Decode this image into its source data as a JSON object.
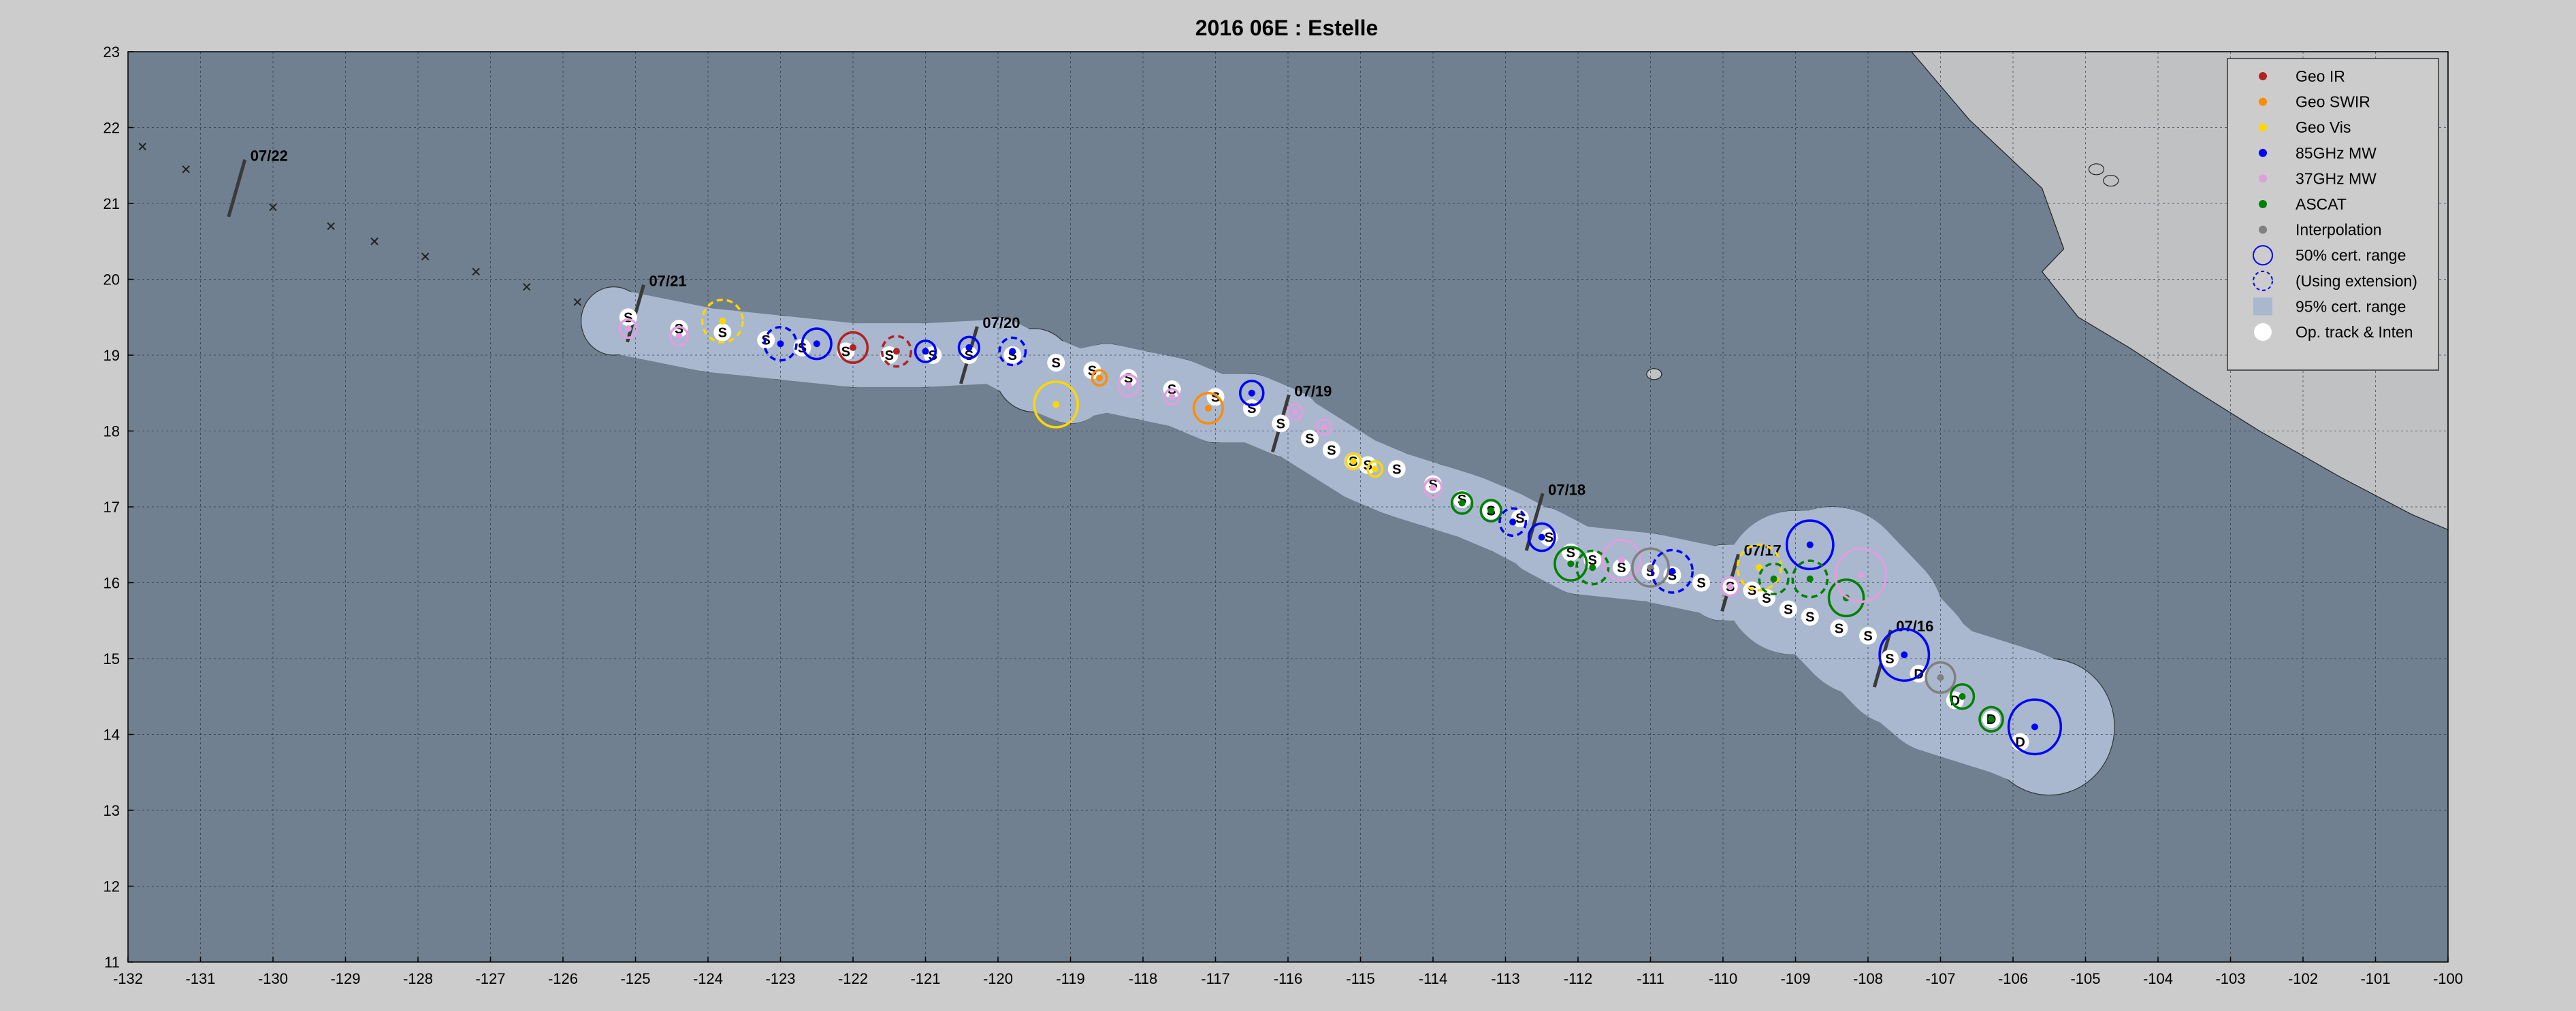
{
  "chart_data": {
    "type": "scatter",
    "title": "2016  06E :  Estelle",
    "xlim": [
      -132,
      -100
    ],
    "ylim": [
      11,
      23
    ],
    "x_ticks": [
      -132,
      -131,
      -130,
      -129,
      -128,
      -127,
      -126,
      -125,
      -124,
      -123,
      -122,
      -121,
      -120,
      -119,
      -118,
      -117,
      -116,
      -115,
      -114,
      -113,
      -112,
      -111,
      -110,
      -109,
      -108,
      -107,
      -106,
      -105,
      -104,
      -103,
      -102,
      -101,
      -100
    ],
    "y_ticks": [
      11,
      12,
      13,
      14,
      15,
      16,
      17,
      18,
      19,
      20,
      21,
      22,
      23
    ],
    "grid": true,
    "legend_position": "top-right",
    "colors": {
      "plot_bg": "#708090",
      "cone": "#a9b8cf",
      "land": "#bfc1c3",
      "geo_ir": "#b22222",
      "geo_swir": "#ff8c00",
      "geo_vis": "#ffd700",
      "ghz85": "#0000ff",
      "ghz37": "#dda0dd",
      "ascat": "#008000",
      "interp": "#808080"
    },
    "legend": [
      {
        "label": "Geo IR",
        "type": "dot",
        "color": "#b22222"
      },
      {
        "label": "Geo SWIR",
        "type": "dot",
        "color": "#ff8c00"
      },
      {
        "label": "Geo Vis",
        "type": "dot",
        "color": "#ffd700"
      },
      {
        "label": "85GHz MW",
        "type": "dot",
        "color": "#0000ff"
      },
      {
        "label": "37GHz MW",
        "type": "dot",
        "color": "#dda0dd"
      },
      {
        "label": "ASCAT",
        "type": "dot",
        "color": "#008000"
      },
      {
        "label": "Interpolation",
        "type": "dot",
        "color": "#808080"
      },
      {
        "label": "50% cert. range",
        "type": "circle",
        "color": "#0000ff"
      },
      {
        "label": "(Using extension)",
        "type": "dashcircle",
        "color": "#0000ff"
      },
      {
        "label": "95% cert. range",
        "type": "square",
        "color": "#a9b8cf"
      },
      {
        "label": "Op. track & Inten",
        "type": "whitedot",
        "color": "#ffffff"
      }
    ],
    "cone_center": [
      [
        -125.3,
        19.45
      ],
      [
        -124,
        19.2
      ],
      [
        -123,
        19.1
      ],
      [
        -122,
        19.0
      ],
      [
        -121,
        19.0
      ],
      [
        -120,
        19.05
      ],
      [
        -119.5,
        18.8
      ],
      [
        -119,
        18.6
      ],
      [
        -118.5,
        18.7
      ],
      [
        -118,
        18.6
      ],
      [
        -117.5,
        18.5
      ],
      [
        -117,
        18.3
      ],
      [
        -116.5,
        18.3
      ],
      [
        -116,
        18.1
      ],
      [
        -115.5,
        17.8
      ],
      [
        -115,
        17.5
      ],
      [
        -114.5,
        17.3
      ],
      [
        -114,
        17.15
      ],
      [
        -113.5,
        17.0
      ],
      [
        -113,
        16.8
      ],
      [
        -112.5,
        16.55
      ],
      [
        -112,
        16.3
      ],
      [
        -111,
        16.2
      ],
      [
        -110,
        16.0
      ],
      [
        -109,
        16.0
      ],
      [
        -108.5,
        16.0
      ],
      [
        -108,
        15.5
      ],
      [
        -107.5,
        15.0
      ],
      [
        -107,
        14.6
      ],
      [
        -106,
        14.3
      ],
      [
        -105.5,
        14.1
      ]
    ],
    "cone_halfwidth": [
      0.45,
      0.42,
      0.42,
      0.42,
      0.42,
      0.45,
      0.55,
      0.5,
      0.45,
      0.45,
      0.45,
      0.45,
      0.45,
      0.45,
      0.42,
      0.42,
      0.42,
      0.42,
      0.42,
      0.42,
      0.45,
      0.45,
      0.45,
      0.5,
      0.95,
      1.0,
      1.0,
      0.9,
      0.85,
      0.85,
      0.9
    ],
    "op_track": [
      {
        "x": -125.1,
        "y": 19.5,
        "label": "S"
      },
      {
        "x": -124.4,
        "y": 19.35,
        "label": "S"
      },
      {
        "x": -123.8,
        "y": 19.3,
        "label": "S"
      },
      {
        "x": -123.2,
        "y": 19.2,
        "label": "S"
      },
      {
        "x": -122.7,
        "y": 19.1,
        "label": "S"
      },
      {
        "x": -122.1,
        "y": 19.05,
        "label": "S"
      },
      {
        "x": -121.5,
        "y": 19.0,
        "label": "S"
      },
      {
        "x": -120.9,
        "y": 19.0,
        "label": "S"
      },
      {
        "x": -120.4,
        "y": 19.0,
        "label": "S"
      },
      {
        "x": -119.8,
        "y": 19.0,
        "label": "S"
      },
      {
        "x": -119.2,
        "y": 18.9,
        "label": "S"
      },
      {
        "x": -118.7,
        "y": 18.8,
        "label": "S"
      },
      {
        "x": -118.2,
        "y": 18.7,
        "label": "S"
      },
      {
        "x": -117.6,
        "y": 18.55,
        "label": "S"
      },
      {
        "x": -117.0,
        "y": 18.45,
        "label": "S"
      },
      {
        "x": -116.5,
        "y": 18.3,
        "label": "S"
      },
      {
        "x": -116.1,
        "y": 18.1,
        "label": "S"
      },
      {
        "x": -115.7,
        "y": 17.9,
        "label": "S"
      },
      {
        "x": -115.4,
        "y": 17.75,
        "label": "S"
      },
      {
        "x": -115.1,
        "y": 17.6,
        "label": "S"
      },
      {
        "x": -114.9,
        "y": 17.55,
        "label": "S"
      },
      {
        "x": -114.5,
        "y": 17.5,
        "label": "S"
      },
      {
        "x": -114.0,
        "y": 17.3,
        "label": "S"
      },
      {
        "x": -113.6,
        "y": 17.1,
        "label": "S"
      },
      {
        "x": -113.2,
        "y": 16.95,
        "label": "S"
      },
      {
        "x": -112.8,
        "y": 16.85,
        "label": "S"
      },
      {
        "x": -112.4,
        "y": 16.6,
        "label": "S"
      },
      {
        "x": -112.1,
        "y": 16.4,
        "label": "S"
      },
      {
        "x": -111.8,
        "y": 16.3,
        "label": "S"
      },
      {
        "x": -111.4,
        "y": 16.2,
        "label": "S"
      },
      {
        "x": -111.0,
        "y": 16.15,
        "label": "S"
      },
      {
        "x": -110.7,
        "y": 16.1,
        "label": "S"
      },
      {
        "x": -110.3,
        "y": 16.0,
        "label": "S"
      },
      {
        "x": -109.9,
        "y": 15.95,
        "label": "S"
      },
      {
        "x": -109.6,
        "y": 15.9,
        "label": "S"
      },
      {
        "x": -109.4,
        "y": 15.8,
        "label": "S"
      },
      {
        "x": -109.1,
        "y": 15.65,
        "label": "S"
      },
      {
        "x": -108.8,
        "y": 15.55,
        "label": "S"
      },
      {
        "x": -108.4,
        "y": 15.4,
        "label": "S"
      },
      {
        "x": -108.0,
        "y": 15.3,
        "label": "S"
      },
      {
        "x": -107.7,
        "y": 15.0,
        "label": "S"
      },
      {
        "x": -107.3,
        "y": 14.8,
        "label": "D"
      },
      {
        "x": -106.8,
        "y": 14.45,
        "label": "D"
      },
      {
        "x": -106.3,
        "y": 14.2,
        "label": "D"
      },
      {
        "x": -105.9,
        "y": 13.9,
        "label": "D"
      }
    ],
    "fixes": [
      {
        "type": "ghz37",
        "x": -125.1,
        "y": 19.35,
        "r": 0.12
      },
      {
        "type": "ghz37",
        "x": -124.4,
        "y": 19.25,
        "r": 0.12
      },
      {
        "type": "geo_vis",
        "x": -123.8,
        "y": 19.45,
        "r": 0.28,
        "dash": true
      },
      {
        "type": "ghz85",
        "x": -123.0,
        "y": 19.15,
        "r": 0.22,
        "dash": true
      },
      {
        "type": "ghz85",
        "x": -122.5,
        "y": 19.15,
        "r": 0.2
      },
      {
        "type": "geo_ir",
        "x": -122.0,
        "y": 19.1,
        "r": 0.2
      },
      {
        "type": "geo_ir",
        "x": -121.4,
        "y": 19.05,
        "r": 0.2,
        "dash": true
      },
      {
        "type": "ghz85",
        "x": -121.0,
        "y": 19.05,
        "r": 0.14
      },
      {
        "type": "ghz85",
        "x": -120.4,
        "y": 19.1,
        "r": 0.14
      },
      {
        "type": "ghz85",
        "x": -119.8,
        "y": 19.05,
        "r": 0.18,
        "dash": true
      },
      {
        "type": "geo_vis",
        "x": -119.2,
        "y": 18.35,
        "r": 0.3
      },
      {
        "type": "geo_swir",
        "x": -118.6,
        "y": 18.7,
        "r": 0.1
      },
      {
        "type": "ghz37",
        "x": -118.2,
        "y": 18.6,
        "r": 0.14
      },
      {
        "type": "ghz37",
        "x": -117.6,
        "y": 18.45,
        "r": 0.1
      },
      {
        "type": "geo_swir",
        "x": -117.1,
        "y": 18.3,
        "r": 0.2
      },
      {
        "type": "ghz85",
        "x": -116.5,
        "y": 18.5,
        "r": 0.16
      },
      {
        "type": "ghz37",
        "x": -115.9,
        "y": 18.25,
        "r": 0.1
      },
      {
        "type": "ghz37",
        "x": -115.5,
        "y": 18.05,
        "r": 0.1
      },
      {
        "type": "geo_vis",
        "x": -115.1,
        "y": 17.6,
        "r": 0.1
      },
      {
        "type": "geo_vis",
        "x": -114.8,
        "y": 17.5,
        "r": 0.1
      },
      {
        "type": "ghz37",
        "x": -114.0,
        "y": 17.25,
        "r": 0.12
      },
      {
        "type": "ascat",
        "x": -113.6,
        "y": 17.05,
        "r": 0.14
      },
      {
        "type": "ascat",
        "x": -113.2,
        "y": 16.95,
        "r": 0.14
      },
      {
        "type": "ghz85",
        "x": -112.9,
        "y": 16.8,
        "r": 0.18,
        "dash": true
      },
      {
        "type": "ghz85",
        "x": -112.5,
        "y": 16.6,
        "r": 0.18
      },
      {
        "type": "ascat",
        "x": -112.1,
        "y": 16.25,
        "r": 0.22
      },
      {
        "type": "ascat",
        "x": -111.8,
        "y": 16.2,
        "r": 0.22,
        "dash": true
      },
      {
        "type": "ghz37",
        "x": -111.4,
        "y": 16.3,
        "r": 0.26
      },
      {
        "type": "interp",
        "x": -111.0,
        "y": 16.2,
        "r": 0.25
      },
      {
        "type": "ghz85",
        "x": -110.7,
        "y": 16.15,
        "r": 0.28,
        "dash": true
      },
      {
        "type": "ghz37",
        "x": -109.9,
        "y": 15.95,
        "r": 0.12
      },
      {
        "type": "geo_vis",
        "x": -109.5,
        "y": 16.2,
        "r": 0.3,
        "dash": true
      },
      {
        "type": "ascat",
        "x": -109.3,
        "y": 16.05,
        "r": 0.2,
        "dash": true
      },
      {
        "type": "ghz85",
        "x": -108.8,
        "y": 16.5,
        "r": 0.32
      },
      {
        "type": "ascat",
        "x": -108.8,
        "y": 16.05,
        "r": 0.24,
        "dash": true
      },
      {
        "type": "ascat",
        "x": -108.3,
        "y": 15.8,
        "r": 0.24
      },
      {
        "type": "ghz37",
        "x": -108.1,
        "y": 16.1,
        "r": 0.35
      },
      {
        "type": "ghz85",
        "x": -107.5,
        "y": 15.05,
        "r": 0.34
      },
      {
        "type": "interp",
        "x": -107.0,
        "y": 14.75,
        "r": 0.2
      },
      {
        "type": "ascat",
        "x": -106.7,
        "y": 14.5,
        "r": 0.16
      },
      {
        "type": "ascat",
        "x": -106.3,
        "y": 14.2,
        "r": 0.16
      },
      {
        "type": "ghz85",
        "x": -105.7,
        "y": 14.1,
        "r": 0.36
      }
    ],
    "date_marks": [
      {
        "label": "07/22",
        "x": -130.5,
        "y": 21.2
      },
      {
        "label": "07/21",
        "x": -125.0,
        "y": 19.55
      },
      {
        "label": "07/20",
        "x": -120.4,
        "y": 19.0
      },
      {
        "label": "07/19",
        "x": -116.1,
        "y": 18.1
      },
      {
        "label": "07/18",
        "x": -112.6,
        "y": 16.8
      },
      {
        "label": "07/17",
        "x": -109.9,
        "y": 16.0
      },
      {
        "label": "07/16",
        "x": -107.8,
        "y": 15.0
      }
    ],
    "forecast_track": [
      [
        -131.8,
        21.75
      ],
      [
        -131.2,
        21.45
      ],
      [
        -130.0,
        20.95
      ],
      [
        -129.2,
        20.7
      ],
      [
        -128.6,
        20.5
      ],
      [
        -127.9,
        20.3
      ],
      [
        -127.2,
        20.1
      ],
      [
        -126.5,
        19.9
      ],
      [
        -125.8,
        19.7
      ]
    ]
  }
}
